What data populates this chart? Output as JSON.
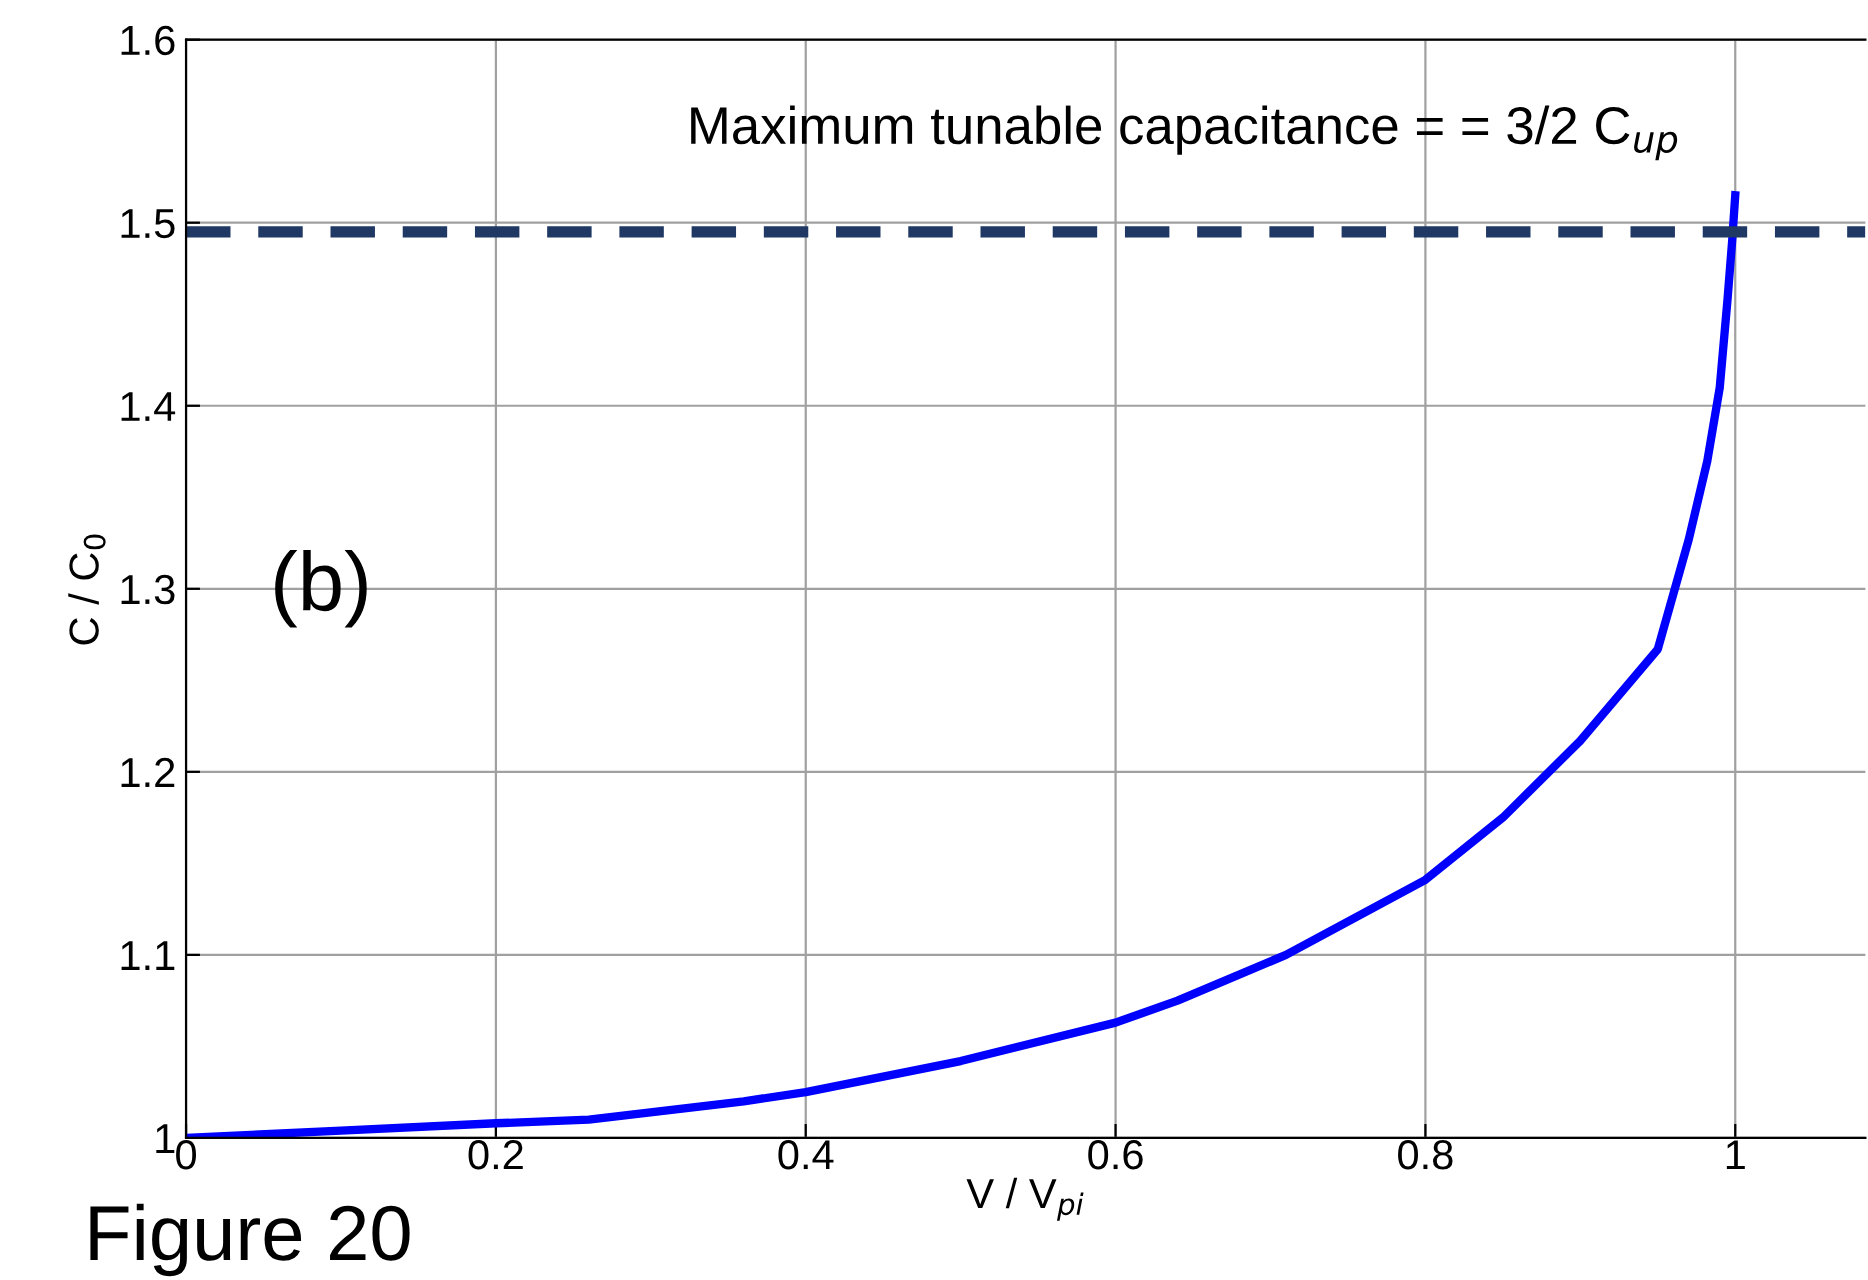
{
  "chart_data": {
    "type": "line",
    "xlabel": "V / V$_{pi}$",
    "ylabel": "C / C$_{0}$",
    "x": [
      0,
      0.1,
      0.2,
      0.26,
      0.36,
      0.4,
      0.5,
      0.6,
      0.64,
      0.71,
      0.8,
      0.85,
      0.9,
      0.95,
      0.97,
      0.982,
      0.99,
      0.995,
      0.998,
      1.0
    ],
    "series": [
      {
        "color": "#0000ff",
        "values": [
          1.0,
          1.004,
          1.008,
          1.01,
          1.02,
          1.025,
          1.042,
          1.063,
          1.075,
          1.1,
          1.141,
          1.175,
          1.217,
          1.267,
          1.327,
          1.37,
          1.41,
          1.458,
          1.49,
          1.515
        ]
      }
    ],
    "xlim": [
      0,
      1.084
    ],
    "xticks": [
      0,
      0.2,
      0.4,
      0.6,
      0.8,
      1
    ],
    "ylim": [
      1,
      1.6
    ],
    "yticks": [
      1,
      1.1,
      1.2,
      1.3,
      1.4,
      1.5,
      1.6
    ],
    "grid": true,
    "line_style": "solid",
    "marker": "none",
    "ref_lines": [
      {
        "axis": "y",
        "value": 1.495,
        "color": "#1f3864",
        "line_style": "dashed"
      }
    ],
    "annotations": [
      "Maximum tunable capacitance = = 3/2 C$_{up}$",
      "(b)",
      "Figure 20"
    ]
  }
}
